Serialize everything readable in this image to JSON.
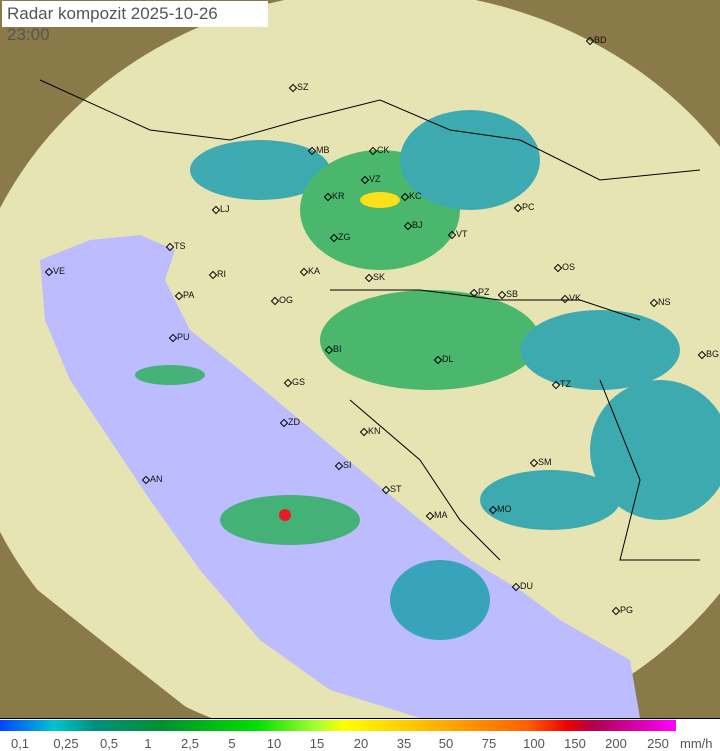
{
  "title": "Radar kompozit  2025-10-26   23:00",
  "colors": {
    "sea": "#bcbcff",
    "land": "#e8e6b0",
    "outside": "#8a7a4a",
    "rain_light": "#20a0b0",
    "rain_medium": "#30b060",
    "rain_heavy": "#ffe000"
  },
  "cities": [
    "BD",
    "SZ",
    "MB",
    "CK",
    "VZ",
    "KR",
    "KC",
    "LJ",
    "PC",
    "ZG",
    "BJ",
    "VT",
    "TS",
    "KA",
    "SK",
    "OS",
    "VE",
    "RI",
    "PA",
    "OG",
    "PZ",
    "SB",
    "VK",
    "NS",
    "PU",
    "BI",
    "DL",
    "BG",
    "GS",
    "TZ",
    "ZD",
    "KN",
    "SM",
    "AN",
    "SI",
    "ST",
    "MA",
    "MO",
    "DU",
    "PG"
  ],
  "legend": {
    "labels": [
      "0,1",
      "0,25",
      "0,5",
      "1",
      "2,5",
      "5",
      "10",
      "15",
      "20",
      "35",
      "50",
      "75",
      "100",
      "150",
      "200",
      "250"
    ],
    "unit": "mm/h"
  }
}
